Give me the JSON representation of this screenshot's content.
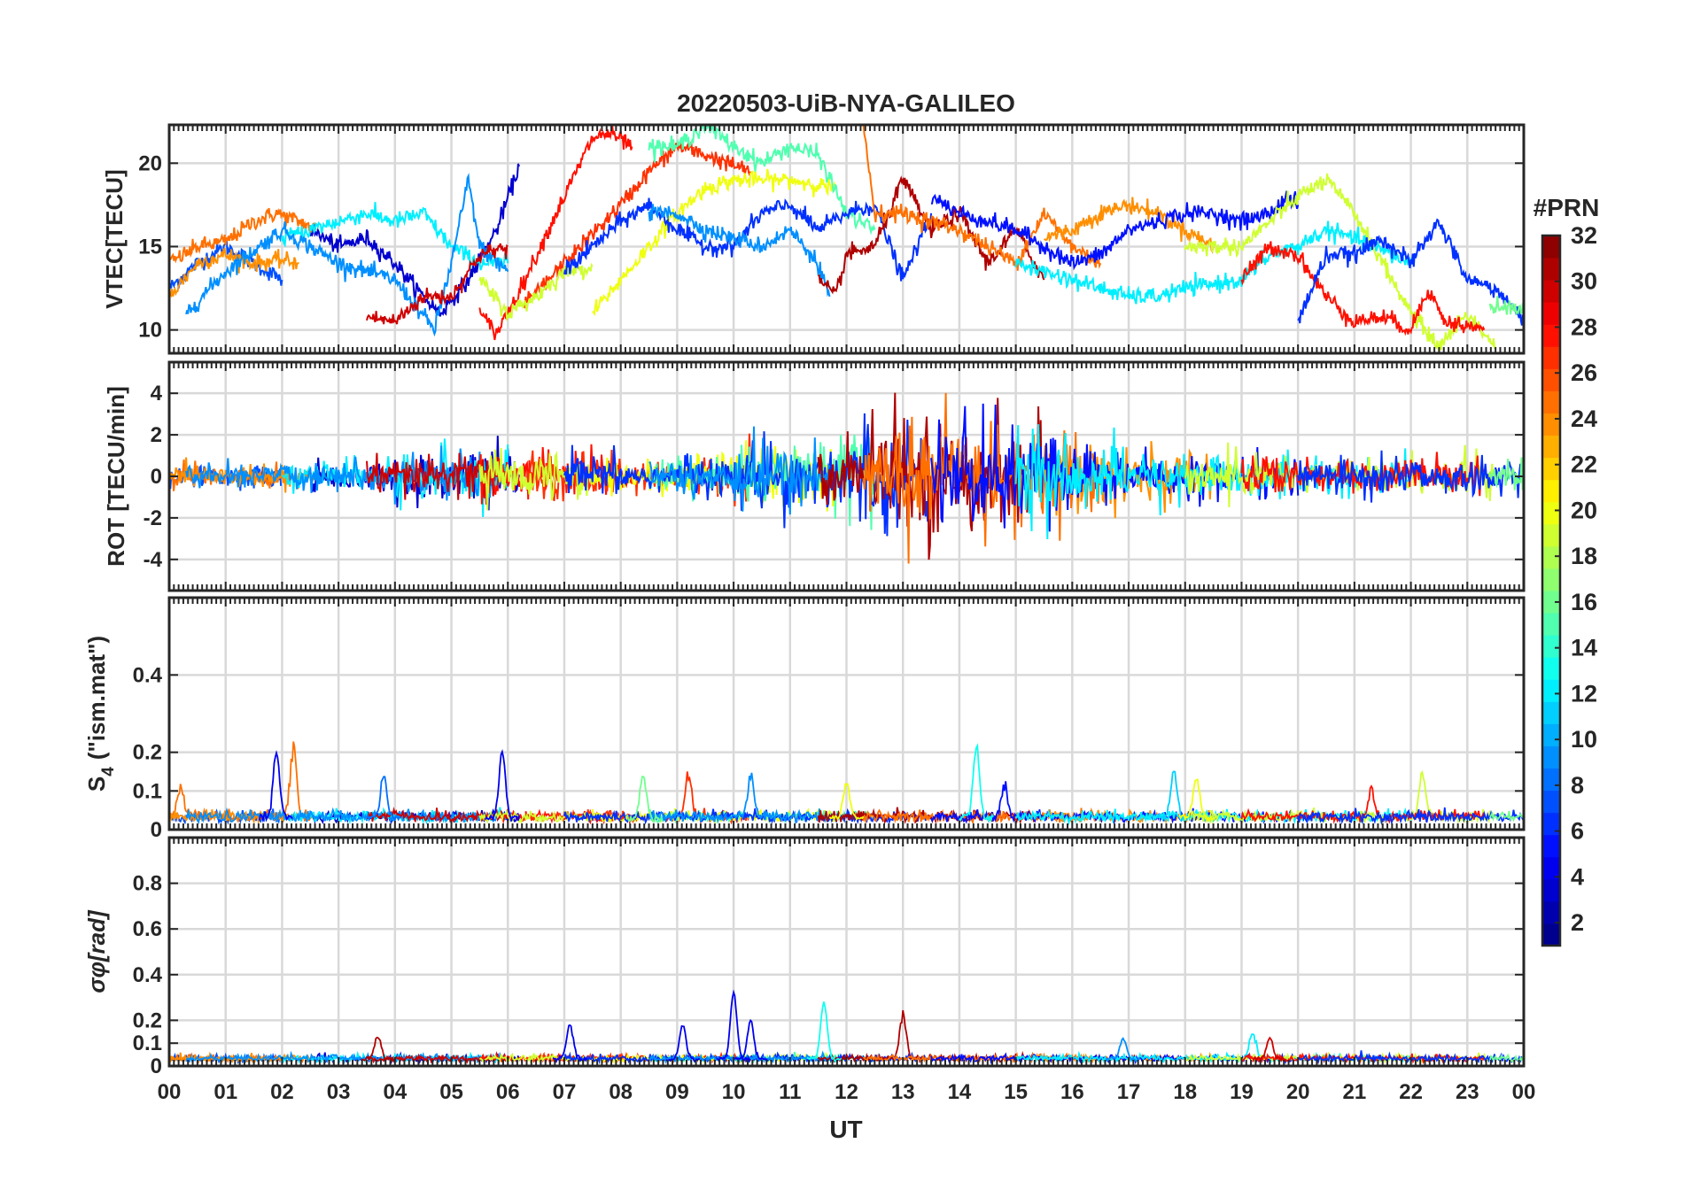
{
  "title": "20220503-UiB-NYA-GALILEO",
  "xlabel": "UT",
  "x_tick_labels": [
    "00",
    "01",
    "02",
    "03",
    "04",
    "05",
    "06",
    "07",
    "08",
    "09",
    "10",
    "11",
    "12",
    "13",
    "14",
    "15",
    "16",
    "17",
    "18",
    "19",
    "20",
    "21",
    "22",
    "23",
    "00"
  ],
  "colorbar": {
    "label": "#PRN",
    "range": [
      1,
      32
    ],
    "ticks": [
      2,
      4,
      6,
      8,
      10,
      12,
      14,
      16,
      18,
      20,
      22,
      24,
      26,
      28,
      30,
      32
    ],
    "colormap": "jet",
    "levels": 32
  },
  "chart_data": [
    {
      "type": "line",
      "ylabel": "VTEC[TECU]",
      "ylim": [
        8.6,
        22.3
      ],
      "yticks": [
        10,
        15,
        20
      ],
      "xlim": [
        0,
        24
      ],
      "series": [
        {
          "prn": 7,
          "points": [
            [
              0,
              12.5
            ],
            [
              0.5,
              14
            ],
            [
              1,
              15
            ],
            [
              1.5,
              14
            ],
            [
              2,
              13
            ]
          ]
        },
        {
          "prn": 25,
          "points": [
            [
              0,
              14
            ],
            [
              0.5,
              15
            ],
            [
              1,
              15.3
            ],
            [
              1.5,
              16.5
            ],
            [
              1.9,
              17
            ],
            [
              2.3,
              16.5
            ],
            [
              2.6,
              16
            ]
          ]
        },
        {
          "prn": 24,
          "points": [
            [
              0,
              12
            ],
            [
              0.5,
              14
            ],
            [
              1,
              14.5
            ],
            [
              1.5,
              14
            ],
            [
              2,
              14.2
            ],
            [
              2.3,
              14
            ]
          ]
        },
        {
          "prn": 3,
          "points": [
            [
              2.5,
              16
            ],
            [
              3,
              15
            ],
            [
              3.5,
              15.5
            ],
            [
              4,
              14
            ],
            [
              4.5,
              12
            ],
            [
              4.8,
              11
            ],
            [
              5.3,
              13
            ],
            [
              5.8,
              16
            ],
            [
              6.2,
              19.8
            ]
          ]
        },
        {
          "prn": 12,
          "points": [
            [
              2,
              15.5
            ],
            [
              3,
              16.5
            ],
            [
              3.5,
              17
            ],
            [
              4,
              16.5
            ],
            [
              4.5,
              17
            ],
            [
              5,
              15
            ],
            [
              5.5,
              14
            ],
            [
              6,
              14
            ]
          ]
        },
        {
          "prn": 9,
          "points": [
            [
              0.3,
              11
            ],
            [
              1,
              13.5
            ],
            [
              2,
              16
            ],
            [
              3,
              14
            ],
            [
              4,
              13
            ],
            [
              4.7,
              10
            ],
            [
              5,
              14
            ],
            [
              5.3,
              19
            ],
            [
              5.5,
              15
            ],
            [
              6,
              13.5
            ]
          ]
        },
        {
          "prn": 30,
          "points": [
            [
              3.5,
              10.8
            ],
            [
              4,
              10.5
            ],
            [
              4.5,
              12
            ],
            [
              5,
              12
            ],
            [
              5.5,
              14.5
            ],
            [
              6,
              15
            ]
          ]
        },
        {
          "prn": 28,
          "points": [
            [
              5.5,
              11
            ],
            [
              5.8,
              9.8
            ],
            [
              6.3,
              13
            ],
            [
              7,
              18
            ],
            [
              7.5,
              21.5
            ],
            [
              7.8,
              21.8
            ],
            [
              8.2,
              21
            ]
          ]
        },
        {
          "prn": 27,
          "points": [
            [
              6.3,
              11.5
            ],
            [
              7,
              14
            ],
            [
              8,
              17.5
            ],
            [
              8.5,
              19.5
            ],
            [
              9,
              21
            ],
            [
              9.5,
              20.5
            ],
            [
              10.3,
              19.5
            ]
          ]
        },
        {
          "prn": 20,
          "points": [
            [
              7.5,
              11
            ],
            [
              8,
              13
            ],
            [
              8.5,
              15
            ],
            [
              9,
              17
            ],
            [
              9.5,
              18.5
            ],
            [
              10,
              19
            ],
            [
              11,
              19
            ],
            [
              11.8,
              18.5
            ]
          ]
        },
        {
          "prn": 19,
          "points": [
            [
              5.5,
              13
            ],
            [
              6,
              11
            ],
            [
              6.5,
              12
            ],
            [
              7,
              13.5
            ],
            [
              7.5,
              13.8
            ]
          ]
        },
        {
          "prn": 15,
          "points": [
            [
              8.5,
              21
            ],
            [
              9,
              21
            ],
            [
              9.5,
              22.3
            ],
            [
              10,
              21
            ],
            [
              10.5,
              20
            ],
            [
              11,
              21
            ],
            [
              11.5,
              20.5
            ],
            [
              12,
              17
            ],
            [
              12.5,
              16
            ]
          ]
        },
        {
          "prn": 6,
          "points": [
            [
              7,
              13.5
            ],
            [
              7.5,
              15
            ],
            [
              8,
              16.5
            ],
            [
              8.5,
              17.5
            ],
            [
              9,
              16
            ],
            [
              9.5,
              15
            ],
            [
              10,
              15
            ],
            [
              10.5,
              17
            ],
            [
              11,
              17.5
            ],
            [
              11.5,
              16
            ],
            [
              12,
              17
            ],
            [
              12.5,
              17.5
            ],
            [
              13,
              13
            ],
            [
              13.5,
              17
            ]
          ]
        },
        {
          "prn": 9,
          "points": [
            [
              8.5,
              17
            ],
            [
              9,
              17
            ],
            [
              9.5,
              16
            ],
            [
              10,
              15.5
            ],
            [
              10.5,
              15
            ],
            [
              11,
              16
            ],
            [
              11.5,
              14
            ],
            [
              11.7,
              12
            ]
          ]
        },
        {
          "prn": 31,
          "points": [
            [
              11.5,
              13
            ],
            [
              11.8,
              12
            ],
            [
              12,
              14.5
            ],
            [
              12.5,
              15
            ],
            [
              13,
              19
            ],
            [
              13.5,
              16
            ],
            [
              14,
              17
            ],
            [
              14.5,
              14
            ],
            [
              15,
              16
            ],
            [
              15.5,
              13
            ]
          ]
        },
        {
          "prn": 25,
          "points": [
            [
              12.3,
              22.3
            ],
            [
              12.5,
              17
            ],
            [
              13,
              17
            ],
            [
              14,
              16
            ],
            [
              15,
              14
            ],
            [
              15.5,
              17
            ],
            [
              16,
              15
            ],
            [
              16.5,
              14
            ]
          ]
        },
        {
          "prn": 24,
          "points": [
            [
              15.5,
              15.5
            ],
            [
              16,
              16
            ],
            [
              16.5,
              17
            ],
            [
              17,
              17.5
            ],
            [
              17.5,
              17
            ],
            [
              18,
              16
            ],
            [
              18.5,
              15
            ]
          ]
        },
        {
          "prn": 5,
          "points": [
            [
              13.5,
              18
            ],
            [
              14,
              17
            ],
            [
              15,
              16
            ],
            [
              16,
              14
            ],
            [
              16.5,
              14.5
            ],
            [
              17,
              16
            ],
            [
              17.5,
              16.5
            ],
            [
              18,
              17
            ],
            [
              18.5,
              17
            ],
            [
              19,
              16.5
            ],
            [
              19.5,
              17
            ],
            [
              19.8,
              18
            ],
            [
              20,
              17.5
            ]
          ]
        },
        {
          "prn": 12,
          "points": [
            [
              15,
              14
            ],
            [
              16,
              13
            ],
            [
              17,
              12
            ],
            [
              17.5,
              12
            ],
            [
              18,
              12.5
            ],
            [
              19,
              13
            ],
            [
              19.5,
              14.5
            ],
            [
              20,
              15
            ],
            [
              20.5,
              16
            ],
            [
              21,
              15.5
            ],
            [
              22,
              14
            ]
          ]
        },
        {
          "prn": 19,
          "points": [
            [
              18,
              15
            ],
            [
              19,
              15
            ],
            [
              19.5,
              16.5
            ],
            [
              20,
              18
            ],
            [
              20.5,
              19
            ],
            [
              21,
              17
            ],
            [
              21.5,
              14
            ],
            [
              22,
              11
            ],
            [
              22.5,
              9
            ],
            [
              23,
              11
            ],
            [
              23.5,
              9
            ]
          ]
        },
        {
          "prn": 28,
          "points": [
            [
              19,
              13
            ],
            [
              19.5,
              15
            ],
            [
              20,
              14.5
            ],
            [
              20.5,
              12
            ],
            [
              21,
              10.5
            ],
            [
              21.5,
              10.8
            ],
            [
              22,
              10
            ],
            [
              22.3,
              12.5
            ],
            [
              22.6,
              10.5
            ],
            [
              23.3,
              10
            ]
          ]
        },
        {
          "prn": 6,
          "points": [
            [
              20,
              10.5
            ],
            [
              20.5,
              14.5
            ],
            [
              21,
              14.5
            ],
            [
              21.5,
              15.5
            ],
            [
              22,
              14
            ],
            [
              22.5,
              16.5
            ],
            [
              23,
              13
            ],
            [
              23.5,
              12.5
            ],
            [
              24,
              10.5
            ]
          ]
        },
        {
          "prn": 16,
          "points": [
            [
              23.4,
              11.5
            ],
            [
              24,
              11.2
            ]
          ]
        }
      ]
    },
    {
      "type": "line",
      "ylabel": "ROT [TECU/min]",
      "ylim": [
        -5.5,
        5.5
      ],
      "yticks": [
        -4,
        -2,
        0,
        2,
        4
      ],
      "xlim": [
        0,
        24
      ],
      "hourly_amplitude": [
        0.25,
        0.25,
        0.3,
        0.35,
        0.55,
        0.55,
        0.55,
        0.45,
        0.35,
        0.5,
        0.75,
        0.8,
        1.1,
        1.2,
        1.2,
        1.1,
        0.75,
        0.6,
        0.5,
        0.5,
        0.45,
        0.4,
        0.4,
        0.4
      ],
      "extremes": {
        "max": 4.1,
        "min": -4.2
      }
    },
    {
      "type": "line",
      "ylabel": "S4 (\"ism.mat\")",
      "ylabel_main": "S",
      "ylabel_sub": "4",
      "ylabel_rest": "(\"ism.mat\")",
      "ylim": [
        0,
        0.6
      ],
      "yticks": [
        0,
        0.1,
        0.2,
        0.4
      ],
      "xlim": [
        0,
        24
      ],
      "baseline": 0.03,
      "peaks": [
        [
          0.2,
          0.12,
          25
        ],
        [
          1.9,
          0.2,
          4
        ],
        [
          2.2,
          0.23,
          25
        ],
        [
          3.8,
          0.14,
          8
        ],
        [
          5.9,
          0.2,
          4
        ],
        [
          8.4,
          0.14,
          16
        ],
        [
          9.2,
          0.16,
          27
        ],
        [
          10.3,
          0.15,
          9
        ],
        [
          12.0,
          0.12,
          20
        ],
        [
          14.3,
          0.21,
          13
        ],
        [
          14.8,
          0.12,
          5
        ],
        [
          17.8,
          0.15,
          11
        ],
        [
          18.2,
          0.13,
          20
        ],
        [
          21.3,
          0.1,
          28
        ],
        [
          22.2,
          0.16,
          19
        ]
      ]
    },
    {
      "type": "line",
      "ylabel": "σφ[rad]",
      "ylabel_main": "σ",
      "ylabel_sub": "φ",
      "ylabel_rest": "[rad]",
      "ylim": [
        0,
        1.0
      ],
      "yticks": [
        0,
        0.1,
        0.2,
        0.4,
        0.6,
        0.8
      ],
      "xlim": [
        0,
        24
      ],
      "baseline": 0.03,
      "peaks": [
        [
          3.7,
          0.13,
          31
        ],
        [
          7.1,
          0.18,
          4
        ],
        [
          9.1,
          0.18,
          4
        ],
        [
          10.0,
          0.32,
          4
        ],
        [
          10.3,
          0.2,
          4
        ],
        [
          11.6,
          0.28,
          13
        ],
        [
          13.0,
          0.24,
          31
        ],
        [
          16.9,
          0.12,
          9
        ],
        [
          19.2,
          0.15,
          12
        ],
        [
          19.5,
          0.12,
          30
        ]
      ]
    }
  ]
}
